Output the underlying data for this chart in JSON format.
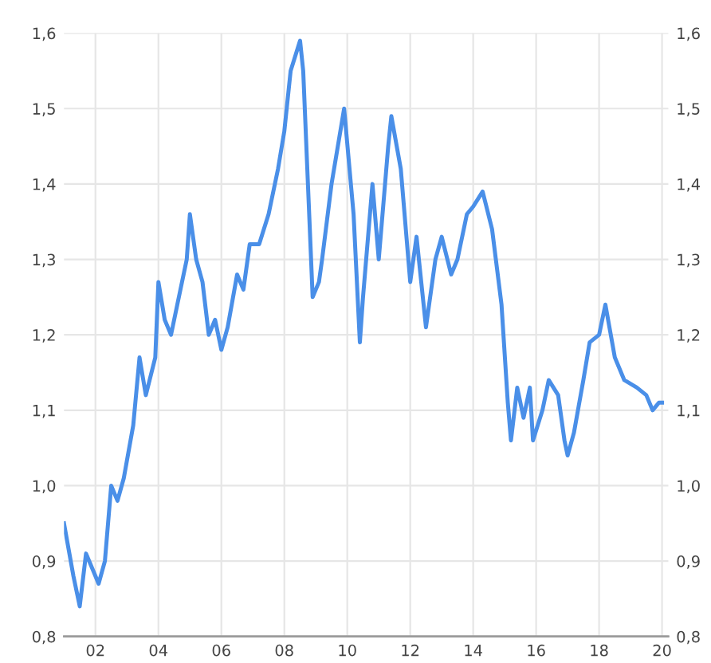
{
  "chart_data": {
    "type": "line",
    "grid": true,
    "xlim": [
      2001.0,
      2020.2
    ],
    "xticks": [
      {
        "value": 2002,
        "label": "02"
      },
      {
        "value": 2004,
        "label": "04"
      },
      {
        "value": 2006,
        "label": "06"
      },
      {
        "value": 2008,
        "label": "08"
      },
      {
        "value": 2010,
        "label": "10"
      },
      {
        "value": 2012,
        "label": "12"
      },
      {
        "value": 2014,
        "label": "14"
      },
      {
        "value": 2016,
        "label": "16"
      },
      {
        "value": 2018,
        "label": "18"
      },
      {
        "value": 2020,
        "label": "20"
      }
    ],
    "ylim": [
      0.8,
      1.6
    ],
    "yticks": [
      {
        "value": 0.8,
        "label": "0,8"
      },
      {
        "value": 0.9,
        "label": "0,9"
      },
      {
        "value": 1.0,
        "label": "1,0"
      },
      {
        "value": 1.1,
        "label": "1,1"
      },
      {
        "value": 1.2,
        "label": "1,2"
      },
      {
        "value": 1.3,
        "label": "1,3"
      },
      {
        "value": 1.4,
        "label": "1,4"
      },
      {
        "value": 1.5,
        "label": "1,5"
      },
      {
        "value": 1.6,
        "label": "1,6"
      }
    ],
    "y2lim": [
      0.8,
      1.6
    ],
    "y2ticks": [
      {
        "value": 0.8,
        "label": "0,8"
      },
      {
        "value": 0.9,
        "label": "0,9"
      },
      {
        "value": 1.0,
        "label": "1,0"
      },
      {
        "value": 1.1,
        "label": "1,1"
      },
      {
        "value": 1.2,
        "label": "1,2"
      },
      {
        "value": 1.3,
        "label": "1,3"
      },
      {
        "value": 1.4,
        "label": "1,4"
      },
      {
        "value": 1.5,
        "label": "1,5"
      },
      {
        "value": 1.6,
        "label": "1,6"
      }
    ],
    "series": [
      {
        "color": "#4a8fe8",
        "x": [
          2001.0,
          2001.3,
          2001.5,
          2001.7,
          2001.9,
          2002.1,
          2002.3,
          2002.5,
          2002.7,
          2002.9,
          2003.2,
          2003.4,
          2003.6,
          2003.9,
          2004.0,
          2004.2,
          2004.4,
          2004.6,
          2004.9,
          2005.0,
          2005.2,
          2005.4,
          2005.6,
          2005.8,
          2006.0,
          2006.2,
          2006.5,
          2006.7,
          2006.9,
          2007.2,
          2007.5,
          2007.8,
          2008.0,
          2008.2,
          2008.5,
          2008.6,
          2008.9,
          2009.1,
          2009.2,
          2009.5,
          2009.9,
          2010.2,
          2010.4,
          2010.5,
          2010.8,
          2011.0,
          2011.3,
          2011.4,
          2011.7,
          2011.9,
          2012.0,
          2012.2,
          2012.5,
          2012.8,
          2013.0,
          2013.3,
          2013.5,
          2013.8,
          2014.0,
          2014.3,
          2014.6,
          2014.9,
          2015.1,
          2015.2,
          2015.4,
          2015.6,
          2015.8,
          2015.9,
          2016.2,
          2016.4,
          2016.7,
          2016.9,
          2017.0,
          2017.2,
          2017.5,
          2017.7,
          2018.0,
          2018.2,
          2018.5,
          2018.8,
          2019.2,
          2019.5,
          2019.7,
          2019.9,
          2020.0
        ],
        "values": [
          0.95,
          0.88,
          0.84,
          0.91,
          0.89,
          0.87,
          0.9,
          1.0,
          0.98,
          1.01,
          1.08,
          1.17,
          1.12,
          1.17,
          1.27,
          1.22,
          1.2,
          1.24,
          1.3,
          1.36,
          1.3,
          1.27,
          1.2,
          1.22,
          1.18,
          1.21,
          1.28,
          1.26,
          1.32,
          1.32,
          1.36,
          1.42,
          1.47,
          1.55,
          1.59,
          1.55,
          1.25,
          1.27,
          1.3,
          1.4,
          1.5,
          1.36,
          1.19,
          1.25,
          1.4,
          1.3,
          1.45,
          1.49,
          1.42,
          1.32,
          1.27,
          1.33,
          1.21,
          1.3,
          1.33,
          1.28,
          1.3,
          1.36,
          1.37,
          1.39,
          1.34,
          1.24,
          1.11,
          1.06,
          1.13,
          1.09,
          1.13,
          1.06,
          1.1,
          1.14,
          1.12,
          1.06,
          1.04,
          1.07,
          1.14,
          1.19,
          1.2,
          1.24,
          1.17,
          1.14,
          1.13,
          1.12,
          1.1,
          1.11,
          1.11
        ]
      }
    ]
  }
}
